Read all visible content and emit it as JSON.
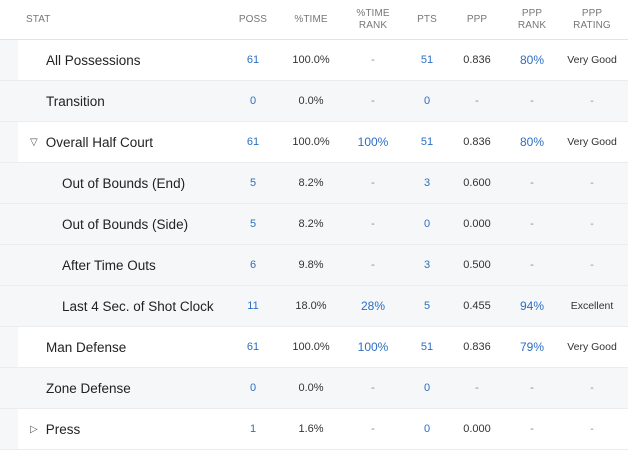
{
  "headers": {
    "stat": "STAT",
    "poss": "POSS",
    "pct_time": "%TIME",
    "pct_time_rank": "%TIME RANK",
    "pts": "PTS",
    "ppp": "PPP",
    "ppp_rank": "PPP RANK",
    "ppp_rating": "PPP RATING"
  },
  "rows": [
    {
      "stat": "All Possessions",
      "poss": "61",
      "pct_time": "100.0%",
      "pct_time_rank": "-",
      "pts": "51",
      "ppp": "0.836",
      "ppp_rank": "80%",
      "rating": "Very Good"
    },
    {
      "stat": "Transition",
      "poss": "0",
      "pct_time": "0.0%",
      "pct_time_rank": "-",
      "pts": "0",
      "ppp": "-",
      "ppp_rank": "-",
      "rating": "-"
    },
    {
      "toggle": "▽",
      "stat": "Overall Half Court",
      "poss": "61",
      "pct_time": "100.0%",
      "pct_time_rank": "100%",
      "pts": "51",
      "ppp": "0.836",
      "ppp_rank": "80%",
      "rating": "Very Good"
    },
    {
      "stat": "Out of Bounds (End)",
      "poss": "5",
      "pct_time": "8.2%",
      "pct_time_rank": "-",
      "pts": "3",
      "ppp": "0.600",
      "ppp_rank": "-",
      "rating": "-"
    },
    {
      "stat": "Out of Bounds (Side)",
      "poss": "5",
      "pct_time": "8.2%",
      "pct_time_rank": "-",
      "pts": "0",
      "ppp": "0.000",
      "ppp_rank": "-",
      "rating": "-"
    },
    {
      "stat": "After Time Outs",
      "poss": "6",
      "pct_time": "9.8%",
      "pct_time_rank": "-",
      "pts": "3",
      "ppp": "0.500",
      "ppp_rank": "-",
      "rating": "-"
    },
    {
      "stat": "Last 4 Sec. of Shot Clock",
      "poss": "11",
      "pct_time": "18.0%",
      "pct_time_rank": "28%",
      "pts": "5",
      "ppp": "0.455",
      "ppp_rank": "94%",
      "rating": "Excellent"
    },
    {
      "stat": "Man Defense",
      "poss": "61",
      "pct_time": "100.0%",
      "pct_time_rank": "100%",
      "pts": "51",
      "ppp": "0.836",
      "ppp_rank": "79%",
      "rating": "Very Good"
    },
    {
      "stat": "Zone Defense",
      "poss": "0",
      "pct_time": "0.0%",
      "pct_time_rank": "-",
      "pts": "0",
      "ppp": "-",
      "ppp_rank": "-",
      "rating": "-"
    },
    {
      "toggle": "▷",
      "stat": "Press",
      "poss": "1",
      "pct_time": "1.6%",
      "pct_time_rank": "-",
      "pts": "0",
      "ppp": "0.000",
      "ppp_rank": "-",
      "rating": "-"
    }
  ],
  "colors": {
    "link_blue": "#2c6fc2",
    "row_shade": "#f6f7f9"
  }
}
